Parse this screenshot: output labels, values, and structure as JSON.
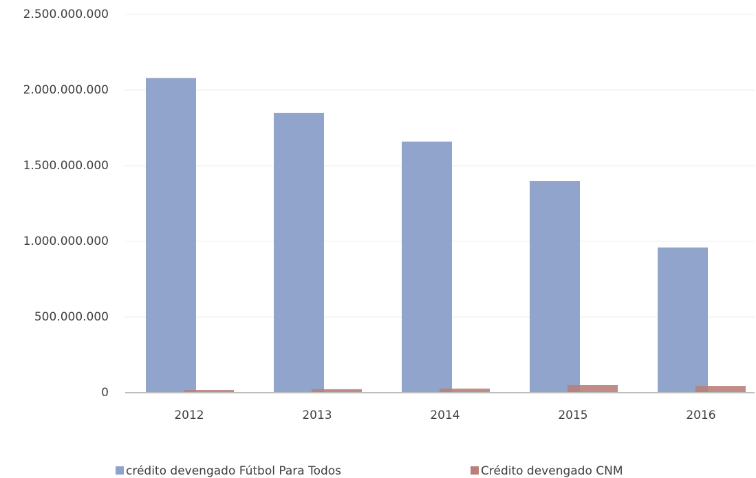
{
  "chart_data": {
    "type": "bar",
    "categories": [
      "2012",
      "2013",
      "2014",
      "2015",
      "2016"
    ],
    "series": [
      {
        "name": "crédito devengado Fútbol Para Todos",
        "color": "#8fa2cb",
        "values": [
          2080000000,
          1850000000,
          1660000000,
          1400000000,
          960000000
        ]
      },
      {
        "name": "Crédito devengado CNM",
        "color": "#b9807a",
        "values": [
          18000000,
          23000000,
          27000000,
          50000000,
          45000000
        ]
      }
    ],
    "ylim": [
      0,
      2500000000
    ],
    "yticks": [
      0,
      {
        "value": 500000000,
        "label": "500.000.000"
      },
      {
        "value": 1000000000,
        "label": "1.000.000.000"
      },
      {
        "value": 1500000000,
        "label": "1.500.000.000"
      },
      {
        "value": 2000000000,
        "label": "2.000.000.000"
      },
      {
        "value": 2500000000,
        "label": "2.500.000.000"
      }
    ],
    "grid": true,
    "legend": "bottom"
  }
}
